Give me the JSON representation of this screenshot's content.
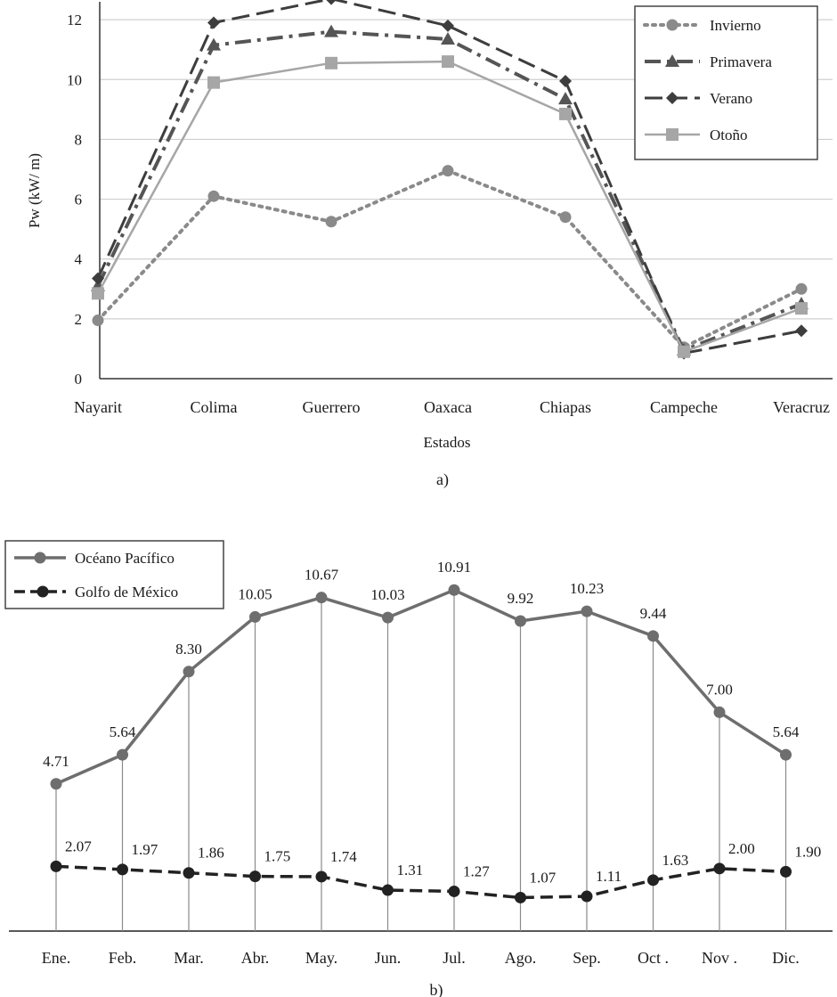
{
  "chart_data": [
    {
      "type": "line",
      "caption": "a)",
      "xlabel": "Estados",
      "ylabel": "Pw (kW/ m)",
      "categories": [
        "Nayarit",
        "Colima",
        "Guerrero",
        "Oaxaca",
        "Chiapas",
        "Campeche",
        "Veracruz"
      ],
      "ylim": [
        0,
        12.6
      ],
      "yticks": [
        0,
        2,
        4,
        6,
        8,
        10,
        12
      ],
      "grid": true,
      "legend_position": "top-right",
      "series": [
        {
          "name": "Invierno",
          "values": [
            1.95,
            6.1,
            5.25,
            6.95,
            5.4,
            1.05,
            3.0
          ],
          "color": "#8a8a8a",
          "marker": "circle"
        },
        {
          "name": "Primavera",
          "values": [
            3.1,
            11.15,
            11.6,
            11.35,
            9.35,
            0.95,
            2.5
          ],
          "color": "#555555",
          "marker": "triangle"
        },
        {
          "name": "Verano",
          "values": [
            3.35,
            11.9,
            12.7,
            11.8,
            9.95,
            0.85,
            1.6
          ],
          "color": "#3d3d3d",
          "marker": "diamond"
        },
        {
          "name": "Otoño",
          "values": [
            2.85,
            9.9,
            10.55,
            10.6,
            8.85,
            0.9,
            2.35
          ],
          "color": "#a6a6a6",
          "marker": "square"
        }
      ]
    },
    {
      "type": "line",
      "caption": "b)",
      "categories": [
        "Ene.",
        "Feb.",
        "Mar.",
        "Abr.",
        "May.",
        "Jun.",
        "Jul.",
        "Ago.",
        "Sep.",
        "Oct .",
        "Nov .",
        "Dic."
      ],
      "ylim": [
        0,
        12
      ],
      "legend_position": "top-left",
      "series": [
        {
          "name": "Océano Pacífico",
          "values": [
            4.71,
            5.64,
            8.3,
            10.05,
            10.67,
            10.03,
            10.91,
            9.92,
            10.23,
            9.44,
            7.0,
            5.64
          ],
          "labels": [
            "4.71",
            "5.64",
            "8.30",
            "10.05",
            "10.67",
            "10.03",
            "10.91",
            "9.92",
            "10.23",
            "9.44",
            "7.00",
            "5.64"
          ],
          "color": "#6e6e6e",
          "marker": "circle"
        },
        {
          "name": "Golfo de México",
          "values": [
            2.07,
            1.97,
            1.86,
            1.75,
            1.74,
            1.31,
            1.27,
            1.07,
            1.11,
            1.63,
            2.0,
            1.9
          ],
          "labels": [
            "2.07",
            "1.97",
            "1.86",
            "1.75",
            "1.74",
            "1.31",
            "1.27",
            "1.07",
            "1.11",
            "1.63",
            "2.00",
            "1.90"
          ],
          "color": "#222222",
          "marker": "circle"
        }
      ]
    }
  ]
}
